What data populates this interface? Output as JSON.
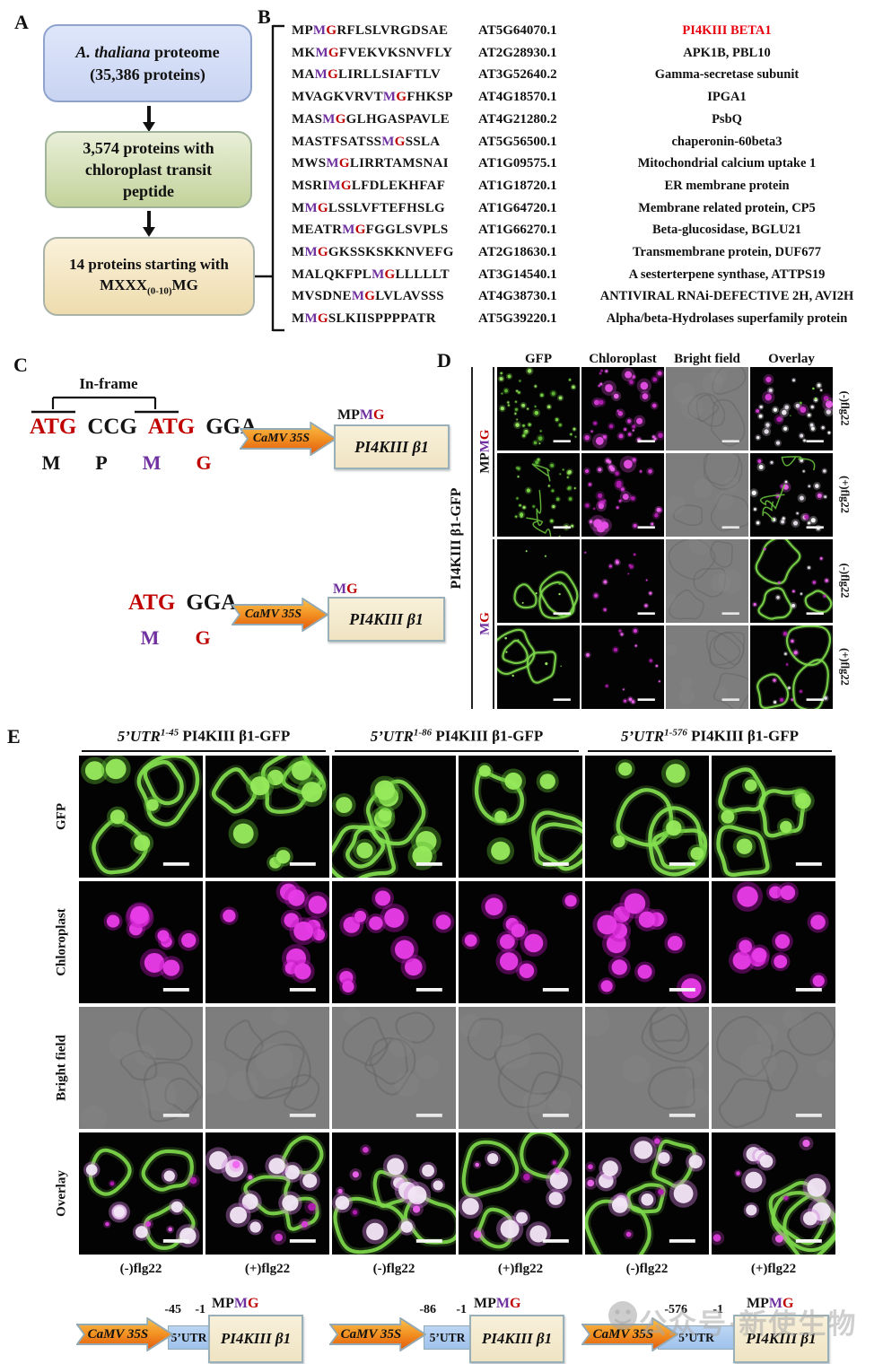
{
  "panelA": {
    "label": "A",
    "box1_italic": "A. thaliana",
    "box1_rest": " proteome",
    "box1_line2": "(35,386 proteins)",
    "box2_text": "3,574 proteins with chloroplast transit peptide",
    "box3_line1": "14 proteins starting with",
    "box3_pre": "MXXX",
    "box3_sub": "(0-10)",
    "box3_post": "MG"
  },
  "panelB": {
    "label": "B",
    "rows": [
      {
        "pre": "MP",
        "suf": "RFLSLVRGDSAE",
        "id": "AT5G64070.1",
        "name": "PI4KIII BETA1",
        "highlight": true
      },
      {
        "pre": "MK",
        "suf": "FVEKVKSNVFLY",
        "id": "AT2G28930.1",
        "name": "APK1B, PBL10",
        "highlight": false
      },
      {
        "pre": "MA",
        "suf": "LIRLLSIAFTLV",
        "id": "AT3G52640.2",
        "name": "Gamma-secretase subunit",
        "highlight": false
      },
      {
        "pre": "MVAGKVRVT",
        "suf": "FHKSP",
        "id": "AT4G18570.1",
        "name": "IPGA1",
        "highlight": false
      },
      {
        "pre": "MAS",
        "suf": "GLHGASPAVLE",
        "id": "AT4G21280.2",
        "name": "PsbQ",
        "highlight": false
      },
      {
        "pre": "MASTFSATSS",
        "suf": "SSLA",
        "id": "AT5G56500.1",
        "name": "chaperonin-60beta3",
        "highlight": false
      },
      {
        "pre": "MWS",
        "suf": "LIRRTAMSNAI",
        "id": "AT1G09575.1",
        "name": "Mitochondrial calcium uptake 1",
        "highlight": false
      },
      {
        "pre": "MSRI",
        "suf": "LFDLEKHFAF",
        "id": "AT1G18720.1",
        "name": "ER membrane protein",
        "highlight": false
      },
      {
        "pre": "M",
        "suf": "LSSLVFTEFHSLG",
        "id": "AT1G64720.1",
        "name": "Membrane related protein, CP5",
        "highlight": false
      },
      {
        "pre": "MEATR",
        "suf": "FGGLSVPLS",
        "id": "AT1G66270.1",
        "name": "Beta-glucosidase, BGLU21",
        "highlight": false
      },
      {
        "pre": "M",
        "suf": "GKSSKSKKNVEFG",
        "id": "AT2G18630.1",
        "name": "Transmembrane protein, DUF677",
        "highlight": false
      },
      {
        "pre": "MALQKFPL",
        "suf": "LLLLLT",
        "id": "AT3G14540.1",
        "name": "A sesterterpene synthase, ATTPS19",
        "highlight": false
      },
      {
        "pre": "MVSDNE",
        "suf": "LVLAVSSS",
        "id": "AT4G38730.1",
        "name": "ANTIVIRAL RNAi-DEFECTIVE 2H, AVI2H",
        "highlight": false
      },
      {
        "pre": "M",
        "suf": "SLKIISPPPPATR",
        "id": "AT5G39220.1",
        "name": "Alpha/beta-Hydrolases superfamily protein",
        "highlight": false
      }
    ],
    "motif_m": "M",
    "motif_g": "G"
  },
  "panelC": {
    "label": "C",
    "inframe": "In-frame",
    "constructs": [
      {
        "codons": [
          [
            "ATG",
            "cr"
          ],
          [
            "CCG",
            "ck"
          ],
          [
            "ATG",
            "cr"
          ],
          [
            "GGA",
            "ck"
          ]
        ],
        "aa": [
          [
            "M",
            "ck"
          ],
          [
            "P",
            "ck"
          ],
          [
            "M",
            "cp"
          ],
          [
            "G",
            "cr"
          ]
        ],
        "promoter": "CaMV 35S",
        "tag": [
          [
            "MP",
            "ck"
          ],
          [
            "M",
            "cp"
          ],
          [
            "G",
            "cr"
          ]
        ],
        "gene": "PI4KIII β1"
      },
      {
        "codons": [
          [
            "ATG",
            "cr"
          ],
          [
            "GGA",
            "ck"
          ]
        ],
        "aa": [
          [
            "M",
            "cp"
          ],
          [
            "G",
            "cr"
          ]
        ],
        "promoter": "CaMV 35S",
        "tag": [
          [
            "M",
            "cp"
          ],
          [
            "G",
            "cr"
          ]
        ],
        "gene": "PI4KIII β1"
      }
    ]
  },
  "panelD": {
    "label": "D",
    "col_headers": [
      "GFP",
      "Chloroplast",
      "Bright field",
      "Overlay"
    ],
    "side_label": "PI4KIII β1-GFP",
    "groups": [
      {
        "tag": [
          [
            "MP",
            "ck"
          ],
          [
            "M",
            "cp"
          ],
          [
            "G",
            "cr"
          ]
        ],
        "rows": [
          "(-)flg22",
          "(+)flg22"
        ]
      },
      {
        "tag": [
          [
            "M",
            "cp"
          ],
          [
            "G",
            "cr"
          ]
        ],
        "rows": [
          "(-)flg22",
          "(+)flg22"
        ]
      }
    ],
    "tile_rows": [
      [
        "gfp_dots",
        "chl_dots",
        "bright",
        "ovl_dots"
      ],
      [
        "gfp_dots_net",
        "chl_dots",
        "bright",
        "ovl_dots_net"
      ],
      [
        "gfp_net",
        "chl_sparse",
        "bright",
        "ovl_net"
      ],
      [
        "gfp_net",
        "chl_sparse",
        "bright",
        "ovl_net"
      ]
    ]
  },
  "panelE": {
    "label": "E",
    "headers": [
      {
        "utr": "5’UTR",
        "sup": "1-45",
        "rest": " PI4KIII β1-GFP"
      },
      {
        "utr": "5’UTR",
        "sup": "1-86",
        "rest": " PI4KIII β1-GFP"
      },
      {
        "utr": "5’UTR",
        "sup": "1-576",
        "rest": " PI4KIII β1-GFP"
      }
    ],
    "row_labels": [
      "GFP",
      "Chloroplast",
      "Bright field",
      "Overlay"
    ],
    "col_labels": [
      "(-)flg22",
      "(+)flg22",
      "(-)flg22",
      "(+)flg22",
      "(-)flg22",
      "(+)flg22"
    ],
    "tile_rows": [
      [
        "gfp_net_blobs",
        "gfp_net_blobs",
        "gfp_net_blobs",
        "gfp_net_blobs",
        "gfp_net_blobs",
        "gfp_net_blobs"
      ],
      [
        "chl_blobs",
        "chl_blobs",
        "chl_blobs",
        "chl_blobs",
        "chl_blobs",
        "chl_blobs"
      ],
      [
        "bright",
        "bright",
        "bright",
        "bright",
        "bright",
        "bright"
      ],
      [
        "ovl_blobs",
        "ovl_blobs",
        "ovl_blobs",
        "ovl_blobs",
        "ovl_blobs",
        "ovl_blobs"
      ]
    ],
    "constructs": [
      {
        "promoter": "CaMV 35S",
        "utr": "5’UTR",
        "start": "-45",
        "end": "-1",
        "tag": [
          [
            "MP",
            "ck"
          ],
          [
            "M",
            "cp"
          ],
          [
            "G",
            "cr"
          ]
        ],
        "gene": "PI4KIII β1"
      },
      {
        "promoter": "CaMV 35S",
        "utr": "5’UTR",
        "start": "-86",
        "end": "-1",
        "tag": [
          [
            "MP",
            "ck"
          ],
          [
            "M",
            "cp"
          ],
          [
            "G",
            "cr"
          ]
        ],
        "gene": "PI4KIII β1"
      },
      {
        "promoter": "CaMV 35S",
        "utr": "5’UTR",
        "start": "-576",
        "end": "-1",
        "tag": [
          [
            "MP",
            "ck"
          ],
          [
            "M",
            "cp"
          ],
          [
            "G",
            "cr"
          ]
        ],
        "gene": "PI4KIII β1"
      }
    ]
  },
  "watermark": {
    "text": "公众号·新使生物"
  },
  "colors": {
    "purple": "#7030a0",
    "red": "#c00000",
    "highlight_red": "#e8000d",
    "gfp_green": "#7fd84b",
    "chloroplast_magenta": "#d93cd9",
    "brightfield_gray": "#7d7d7d",
    "promoter_orange": "#ef8a1c",
    "utr_blue": "#a9c9f0",
    "gene_box_cream": "#f4ebd0"
  }
}
